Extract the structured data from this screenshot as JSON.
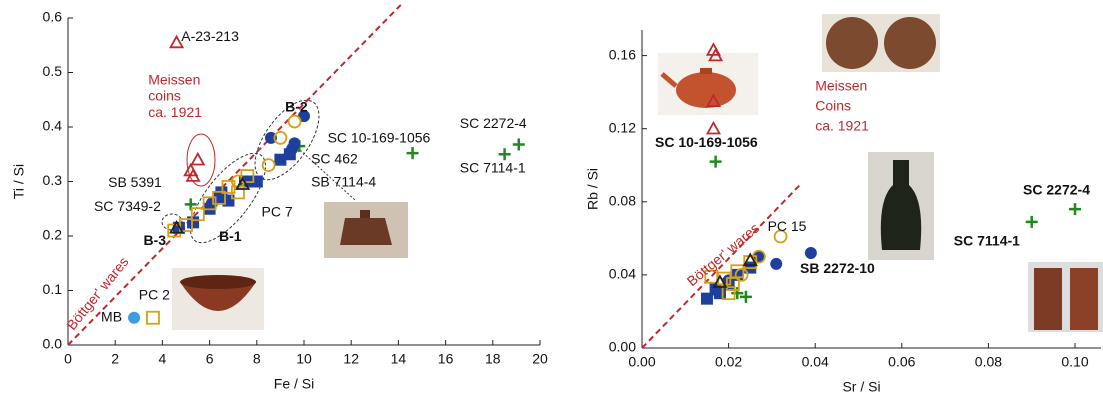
{
  "chart_data": [
    {
      "type": "scatter",
      "x_label": "Fe / Si",
      "y_label": "Ti / Si",
      "xlim": [
        0,
        20
      ],
      "ylim": [
        0,
        0.6
      ],
      "xticks": [
        0,
        2,
        4,
        6,
        8,
        10,
        12,
        14,
        16,
        18,
        20
      ],
      "yticks": [
        {
          "value": 0,
          "label": "0.0"
        },
        0.1,
        0.2,
        0.3,
        0.4,
        0.5,
        0.6
      ],
      "ref_line": {
        "x": [
          0,
          14.1
        ],
        "y": [
          0,
          0.624
        ],
        "color": "#c0282d"
      },
      "series": [
        {
          "marker": "triangle-open",
          "color": "#c0282d",
          "x": [
            4.6,
            5.2,
            5.5,
            5.3
          ],
          "values": [
            0.555,
            0.32,
            0.34,
            0.31
          ]
        },
        {
          "marker": "plus",
          "color": "#1e8a1e",
          "x": [
            14.6,
            18.5,
            19.1,
            9.8,
            5.2
          ],
          "values": [
            0.352,
            0.35,
            0.368,
            0.365,
            0.258
          ]
        },
        {
          "marker": "square",
          "color": "#1f3f9f",
          "x": [
            4.7,
            5.3,
            6.0,
            6.5,
            6.8,
            7.5,
            8.0,
            9.0,
            9.4,
            6.4
          ],
          "values": [
            0.215,
            0.225,
            0.25,
            0.28,
            0.265,
            0.3,
            0.3,
            0.34,
            0.35,
            0.27
          ]
        },
        {
          "marker": "circle",
          "color": "#1f3f9f",
          "x": [
            8.6,
            9.5,
            9.6,
            10.0,
            6.1
          ],
          "values": [
            0.38,
            0.36,
            0.37,
            0.42,
            0.26
          ]
        },
        {
          "marker": "square-open",
          "color": "#d4a017",
          "x": [
            3.6,
            4.5,
            5.0,
            5.5,
            6.0,
            6.8,
            7.2,
            7.6,
            6.4
          ],
          "values": [
            0.05,
            0.21,
            0.22,
            0.24,
            0.26,
            0.29,
            0.28,
            0.31,
            0.27
          ]
        },
        {
          "marker": "circle-open",
          "color": "#d4a017",
          "x": [
            8.5,
            9.0,
            9.6,
            7.2
          ],
          "values": [
            0.33,
            0.38,
            0.41,
            0.3
          ]
        },
        {
          "marker": "triangle-open",
          "color": "#222222",
          "x": [
            7.4,
            4.6
          ],
          "values": [
            0.295,
            0.215
          ]
        },
        {
          "marker": "circle",
          "color": "#3a9de6",
          "x": [
            2.8
          ],
          "values": [
            0.05
          ]
        }
      ],
      "annotations": [
        {
          "text": "A-23-213",
          "x": 4.8,
          "y": 0.565
        },
        {
          "text": "Meissen",
          "x": 3.4,
          "y": 0.485,
          "color": "#c0282d"
        },
        {
          "text": "coins",
          "x": 3.4,
          "y": 0.455,
          "color": "#c0282d"
        },
        {
          "text": "ca. 1921",
          "x": 3.4,
          "y": 0.425,
          "color": "#c0282d"
        },
        {
          "text": "B-2",
          "x": 9.2,
          "y": 0.435,
          "bold": true
        },
        {
          "text": "SC 10-169-1056",
          "x": 11.0,
          "y": 0.378
        },
        {
          "text": "SC 2272-4",
          "x": 16.6,
          "y": 0.405
        },
        {
          "text": "SC 7114-1",
          "x": 16.6,
          "y": 0.323
        },
        {
          "text": "SC 462",
          "x": 10.3,
          "y": 0.34
        },
        {
          "text": "SB 7114-4",
          "x": 10.3,
          "y": 0.298
        },
        {
          "text": "SB 5391",
          "x": 1.7,
          "y": 0.297
        },
        {
          "text": "SC 7349-2",
          "x": 1.1,
          "y": 0.253
        },
        {
          "text": "PC 7",
          "x": 8.2,
          "y": 0.243
        },
        {
          "text": "B-1",
          "x": 6.4,
          "y": 0.198,
          "bold": true
        },
        {
          "text": "B-3",
          "x": 3.2,
          "y": 0.19,
          "bold": true
        },
        {
          "text": "PC 2",
          "x": 3.0,
          "y": 0.09
        },
        {
          "text": "MB",
          "x": 1.4,
          "y": 0.05
        },
        {
          "text": "Böttger' wares",
          "x": 0.1,
          "y": 0.03,
          "color": "#c0282d",
          "rotate": -51
        }
      ]
    },
    {
      "type": "scatter",
      "x_label": "Sr / Si",
      "y_label": "Rb / Si",
      "xlim": [
        0,
        0.106
      ],
      "ylim": [
        0,
        0.174
      ],
      "xticks": [
        {
          "value": 0,
          "label": "0.00"
        },
        {
          "value": 0.02,
          "label": "0.02"
        },
        {
          "value": 0.04,
          "label": "0.04"
        },
        {
          "value": 0.06,
          "label": "0.06"
        },
        {
          "value": 0.08,
          "label": "0.08"
        },
        {
          "value": 0.1,
          "label": "0.10"
        }
      ],
      "yticks": [
        {
          "value": 0,
          "label": "0.00"
        },
        {
          "value": 0.04,
          "label": "0.04"
        },
        {
          "value": 0.08,
          "label": "0.08"
        },
        {
          "value": 0.12,
          "label": "0.12"
        },
        {
          "value": 0.16,
          "label": "0.16"
        }
      ],
      "ref_line": {
        "x": [
          0,
          0.0365
        ],
        "y": [
          0,
          0.0893
        ],
        "color": "#c0282d"
      },
      "series": [
        {
          "marker": "triangle-open",
          "color": "#c0282d",
          "x": [
            0.0165,
            0.017,
            0.0165,
            0.0165
          ],
          "values": [
            0.163,
            0.16,
            0.135,
            0.12
          ]
        },
        {
          "marker": "plus",
          "color": "#1e8a1e",
          "x": [
            0.017,
            0.09,
            0.1,
            0.024,
            0.022
          ],
          "values": [
            0.102,
            0.069,
            0.076,
            0.028,
            0.03
          ]
        },
        {
          "marker": "square",
          "color": "#1f3f9f",
          "x": [
            0.015,
            0.018,
            0.02,
            0.022,
            0.025,
            0.017
          ],
          "values": [
            0.027,
            0.03,
            0.035,
            0.04,
            0.044,
            0.032
          ]
        },
        {
          "marker": "circle",
          "color": "#1f3f9f",
          "x": [
            0.039,
            0.031,
            0.027,
            0.02
          ],
          "values": [
            0.052,
            0.046,
            0.05,
            0.037
          ]
        },
        {
          "marker": "square-open",
          "color": "#d4a017",
          "x": [
            0.016,
            0.019,
            0.021,
            0.022,
            0.025,
            0.02
          ],
          "values": [
            0.039,
            0.038,
            0.035,
            0.042,
            0.047,
            0.03
          ]
        },
        {
          "marker": "circle-open",
          "color": "#d4a017",
          "x": [
            0.032,
            0.027,
            0.023
          ],
          "values": [
            0.061,
            0.05,
            0.04
          ]
        },
        {
          "marker": "triangle-open",
          "color": "#222222",
          "x": [
            0.018,
            0.025
          ],
          "values": [
            0.036,
            0.048
          ]
        }
      ],
      "annotations": [
        {
          "text": "SC 10-169-1056",
          "x": 0.003,
          "y": 0.112,
          "bold": true
        },
        {
          "text": "Meissen",
          "x": 0.04,
          "y": 0.143,
          "color": "#c0282d"
        },
        {
          "text": "Coins",
          "x": 0.04,
          "y": 0.132,
          "color": "#c0282d"
        },
        {
          "text": "ca. 1921",
          "x": 0.04,
          "y": 0.121,
          "color": "#c0282d"
        },
        {
          "text": "PC 15",
          "x": 0.029,
          "y": 0.066
        },
        {
          "text": "SB 2272-10",
          "x": 0.0365,
          "y": 0.043,
          "bold": true
        },
        {
          "text": "SC 2272-4",
          "x": 0.088,
          "y": 0.086,
          "bold": true
        },
        {
          "text": "SC 7114-1",
          "x": 0.072,
          "y": 0.058,
          "bold": true
        },
        {
          "text": "Böttger' wares",
          "x": 0.011,
          "y": 0.035,
          "color": "#c0282d",
          "rotate": -40
        }
      ]
    }
  ]
}
